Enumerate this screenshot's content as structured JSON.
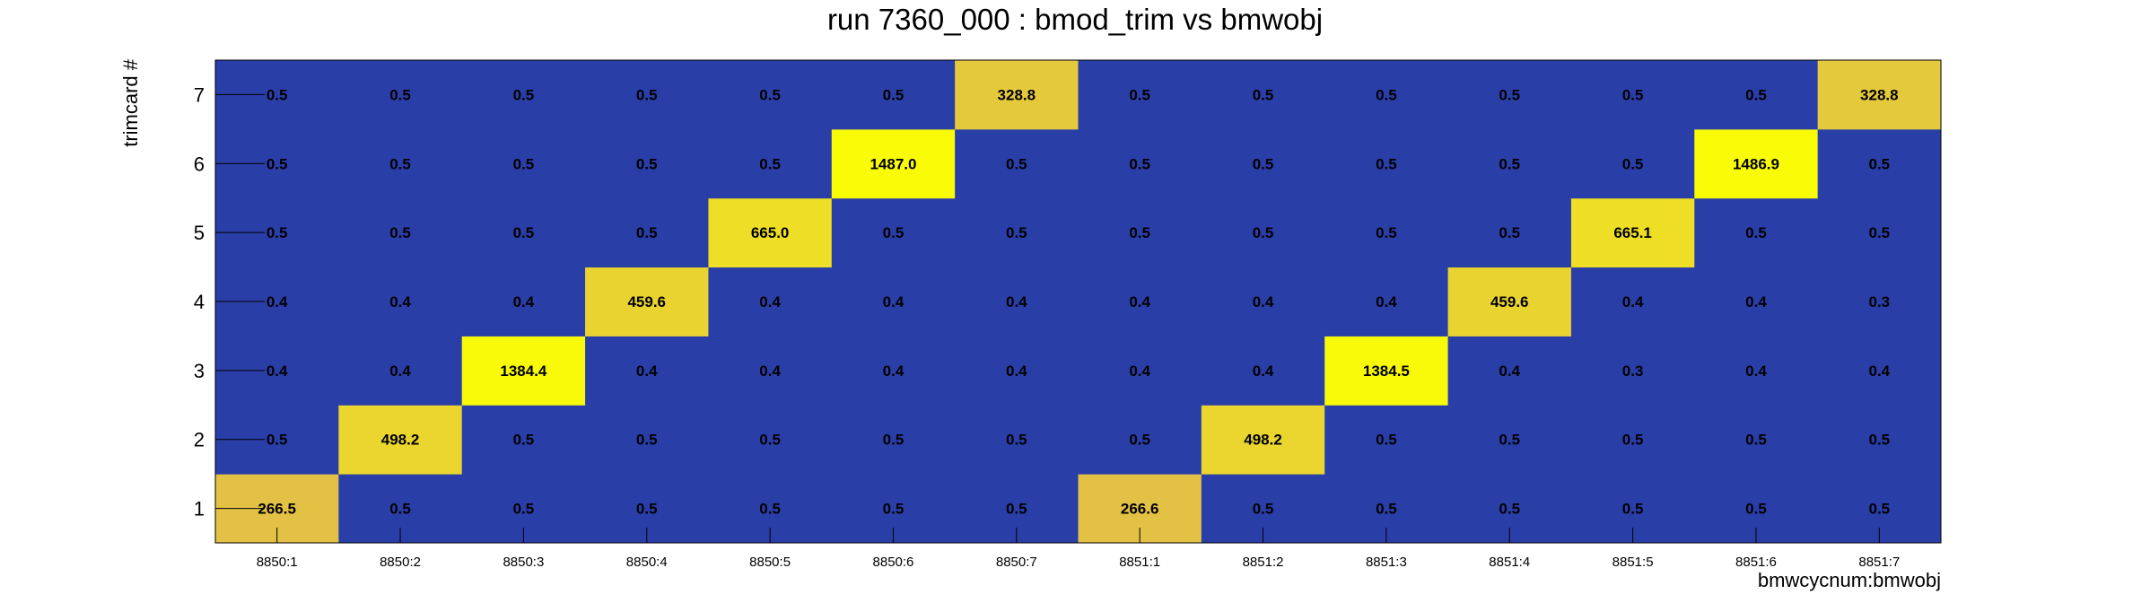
{
  "chart_data": {
    "type": "heatmap",
    "title": "run 7360_000 : bmod_trim vs bmwobj",
    "xlabel": "bmwcycnum:bmwobj",
    "ylabel": "trimcard #",
    "x_categories": [
      "8850:1",
      "8850:2",
      "8850:3",
      "8850:4",
      "8850:5",
      "8850:6",
      "8850:7",
      "8851:1",
      "8851:2",
      "8851:3",
      "8851:4",
      "8851:5",
      "8851:6",
      "8851:7"
    ],
    "y_categories": [
      "1",
      "2",
      "3",
      "4",
      "5",
      "6",
      "7"
    ],
    "values": [
      [
        "266.5",
        "0.5",
        "0.5",
        "0.5",
        "0.5",
        "0.5",
        "0.5",
        "266.6",
        "0.5",
        "0.5",
        "0.5",
        "0.5",
        "0.5",
        "0.5"
      ],
      [
        "0.5",
        "498.2",
        "0.5",
        "0.5",
        "0.5",
        "0.5",
        "0.5",
        "0.5",
        "498.2",
        "0.5",
        "0.5",
        "0.5",
        "0.5",
        "0.5"
      ],
      [
        "0.4",
        "0.4",
        "1384.4",
        "0.4",
        "0.4",
        "0.4",
        "0.4",
        "0.4",
        "0.4",
        "1384.5",
        "0.4",
        "0.3",
        "0.4",
        "0.4"
      ],
      [
        "0.4",
        "0.4",
        "0.4",
        "459.6",
        "0.4",
        "0.4",
        "0.4",
        "0.4",
        "0.4",
        "0.4",
        "459.6",
        "0.4",
        "0.4",
        "0.3"
      ],
      [
        "0.5",
        "0.5",
        "0.5",
        "0.5",
        "665.0",
        "0.5",
        "0.5",
        "0.5",
        "0.5",
        "0.5",
        "0.5",
        "665.1",
        "0.5",
        "0.5"
      ],
      [
        "0.5",
        "0.5",
        "0.5",
        "0.5",
        "0.5",
        "1487.0",
        "0.5",
        "0.5",
        "0.5",
        "0.5",
        "0.5",
        "0.5",
        "1486.9",
        "0.5"
      ],
      [
        "0.5",
        "0.5",
        "0.5",
        "0.5",
        "0.5",
        "0.5",
        "328.8",
        "0.5",
        "0.5",
        "0.5",
        "0.5",
        "0.5",
        "0.5",
        "328.8"
      ]
    ],
    "colors": {
      "low": "#2a3ea8",
      "mid": "#dfbb4b",
      "high": "#fafc07",
      "frame": "#000000"
    }
  }
}
